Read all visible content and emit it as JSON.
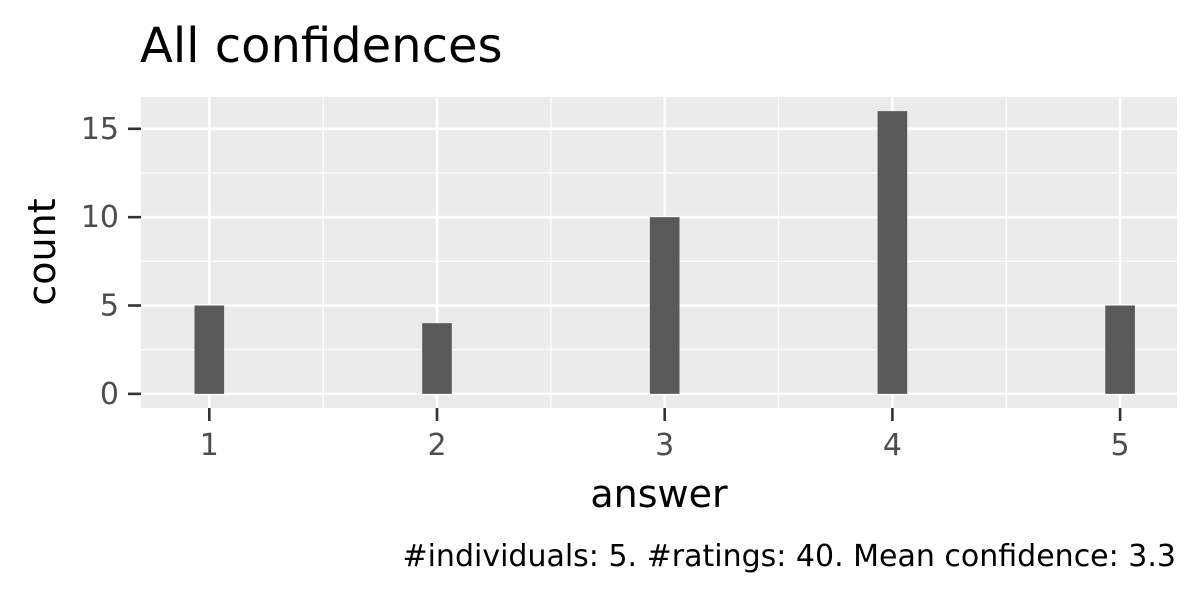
{
  "chart_data": {
    "type": "bar",
    "title": "All confidences",
    "xlabel": "answer",
    "ylabel": "count",
    "caption": "#individuals: 5. #ratings: 40. Mean confidence: 3.3",
    "x": [
      1,
      2,
      3,
      4,
      5
    ],
    "values": [
      5,
      4,
      10,
      16,
      5
    ],
    "xlim": [
      0.7,
      5.25
    ],
    "ylim": [
      -0.8,
      16.8
    ],
    "x_ticks": [
      1,
      2,
      3,
      4,
      5
    ],
    "y_ticks": [
      0,
      5,
      10,
      15
    ],
    "grid": true,
    "colors": {
      "panel": "#ebebeb",
      "grid": "#ffffff",
      "bar": "#595959",
      "tick_text": "#4d4d4d",
      "text": "#000000",
      "tick_mark": "#333333"
    }
  }
}
